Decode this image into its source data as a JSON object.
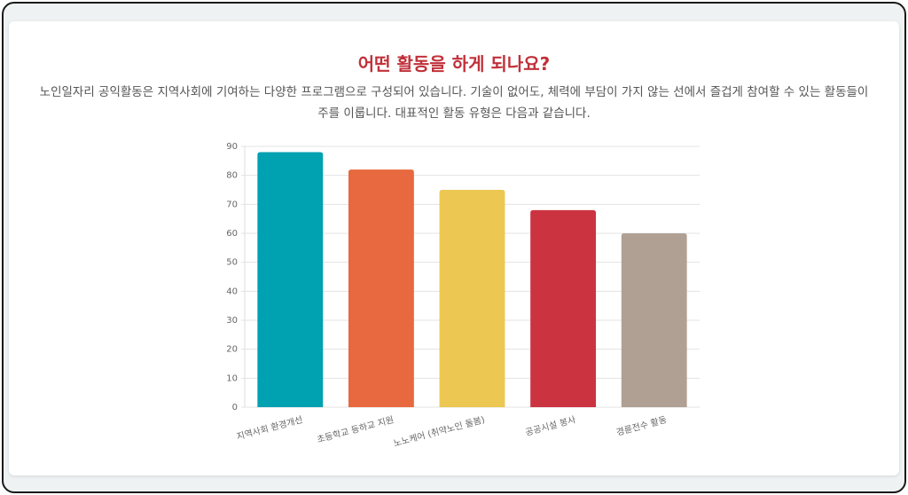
{
  "chart_data": {
    "type": "bar",
    "title": "어떤 활동을 하게 되나요?",
    "subtitle": "노인일자리 공익활동은 지역사회에 기여하는 다양한 프로그램으로 구성되어 있습니다. 기술이 없어도, 체력에 부담이 가지 않는 선에서 즐겁게 참여할 수 있는 활동들이 주를 이룹니다. 대표적인 활동 유형은 다음과 같습니다.",
    "categories": [
      "지역사회 환경개선",
      "초등학교 등하교 지원",
      "노노케어 (취약노인 돌봄)",
      "공공시설 봉사",
      "경륜전수 활동"
    ],
    "values": [
      88,
      82,
      75,
      68,
      60
    ],
    "colors": [
      "#00a1b1",
      "#e8693f",
      "#ecc852",
      "#cc3340",
      "#b0a094"
    ],
    "ylim": [
      0,
      90
    ],
    "yticks": [
      0,
      10,
      20,
      30,
      40,
      50,
      60,
      70,
      80,
      90
    ],
    "grid": true
  }
}
